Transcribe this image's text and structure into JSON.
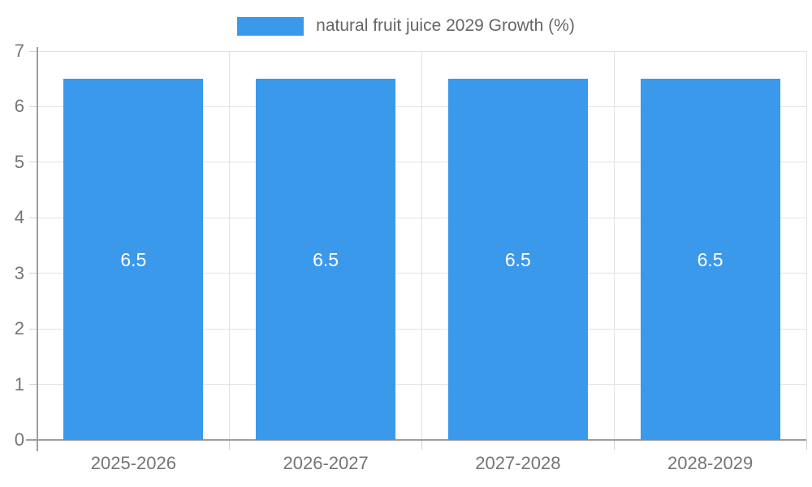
{
  "chart_data": {
    "type": "bar",
    "title": "",
    "categories": [
      "2025-2026",
      "2026-2027",
      "2027-2028",
      "2028-2029"
    ],
    "series": [
      {
        "name": "natural fruit juice 2029 Growth (%)",
        "values": [
          6.5,
          6.5,
          6.5,
          6.5
        ]
      }
    ],
    "bar_labels": [
      "6.5",
      "6.5",
      "6.5",
      "6.5"
    ],
    "ylim": [
      0,
      7
    ],
    "yticks": [
      0,
      1,
      2,
      3,
      4,
      5,
      6,
      7
    ],
    "ytick_labels": [
      "0",
      "1",
      "2",
      "3",
      "4",
      "5",
      "6",
      "7"
    ],
    "xlabel": "",
    "ylabel": "",
    "grid": true,
    "legend_position": "top",
    "colors": {
      "bar": "#3B99EC",
      "grid": "#E3E3E3",
      "tick": "#D2D2D2",
      "axis": "#9E9E9E",
      "tick_text": "#757575",
      "legend_text": "#666666",
      "bar_label_text": "#FFFFFF",
      "background": "#FFFFFF"
    }
  }
}
